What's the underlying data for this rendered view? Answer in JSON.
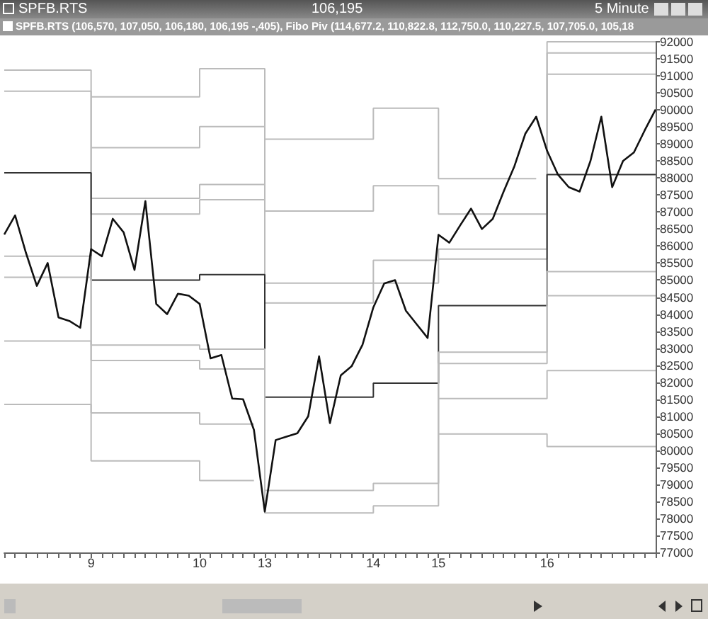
{
  "chart_data": {
    "type": "line",
    "title": "SPFB.RTS",
    "annotations": [
      "106,195",
      "5 Minute",
      "SPFB.RTS (106,570, 107,050, 106,180, 106,195 -,405), Fibo Piv (114,677.2, 110,822.8, 112,750.0, 110,227.5, 107,705.0, 105,18"
    ],
    "categories": [
      null,
      null,
      null,
      null,
      null,
      null,
      null,
      null,
      "9",
      null,
      null,
      null,
      null,
      null,
      null,
      null,
      null,
      null,
      "10",
      null,
      null,
      null,
      null,
      null,
      "13",
      null,
      null,
      null,
      null,
      null,
      null,
      null,
      null,
      null,
      "14",
      null,
      null,
      null,
      null,
      null,
      "15",
      null,
      null,
      null,
      null,
      null,
      null,
      null,
      null,
      null,
      "16",
      null,
      null,
      null,
      null,
      null,
      null,
      null,
      null,
      null,
      null
    ],
    "ylim": [
      77000,
      92000
    ],
    "yticks": [
      77000,
      77500,
      78000,
      78500,
      79000,
      79500,
      80000,
      80500,
      81000,
      81500,
      82000,
      82500,
      83000,
      83500,
      84000,
      84500,
      85000,
      85500,
      86000,
      86500,
      87000,
      87500,
      88000,
      88500,
      89000,
      89500,
      90000,
      90500,
      91000,
      91500,
      92000
    ],
    "grid": false,
    "marker": "none",
    "line_style": "solid",
    "series": [
      {
        "type": "step",
        "color": "#bbbbbb",
        "values": [
          null,
          null,
          null,
          null,
          null,
          null,
          null,
          null,
          90380,
          90380,
          90380,
          90380,
          90380,
          90380,
          90380,
          90380,
          90380,
          90380,
          91210,
          91210,
          91210,
          91210,
          91210,
          91210,
          89140,
          89140,
          89140,
          89140,
          89140,
          89140,
          89140,
          89140,
          89140,
          89140,
          90050,
          90050,
          90050,
          90050,
          90050,
          90050,
          87980,
          87980,
          87980,
          87980,
          87980,
          87980,
          87980,
          87980,
          87980,
          87980,
          null,
          null,
          null,
          null,
          null,
          null,
          null,
          null,
          null,
          null,
          null
        ]
      },
      {
        "type": "step",
        "color": "#bbbbbb",
        "values": [
          null,
          null,
          null,
          null,
          null,
          null,
          null,
          null,
          88890,
          88890,
          88890,
          88890,
          88890,
          88890,
          88890,
          88890,
          88890,
          88890,
          89510,
          89510,
          89510,
          89510,
          89510,
          89510,
          87030,
          87030,
          87030,
          87030,
          87030,
          87030,
          87030,
          87030,
          87030,
          87030,
          87770,
          87770,
          87770,
          87770,
          87770,
          87770,
          86940,
          86940,
          86940,
          86940,
          86940,
          86940,
          86940,
          86940,
          86940,
          86940,
          92000,
          92000,
          92000,
          92000,
          92000,
          92000,
          92000,
          92000,
          92000,
          92000,
          92000
        ]
      },
      {
        "type": "step",
        "color": "#bbbbbb",
        "values": [
          91170,
          91170,
          91170,
          91170,
          91170,
          91170,
          91170,
          91170,
          87400,
          87400,
          87400,
          87400,
          87400,
          87400,
          87400,
          87400,
          87400,
          87400,
          87810,
          87810,
          87810,
          87810,
          87810,
          87810,
          84910,
          84910,
          84910,
          84910,
          84910,
          84910,
          84910,
          84910,
          84910,
          84910,
          85580,
          85580,
          85580,
          85580,
          85580,
          85580,
          85910,
          85910,
          85910,
          85910,
          85910,
          85910,
          85910,
          85910,
          85910,
          85910,
          91670,
          91670,
          91670,
          91670,
          91670,
          91670,
          91670,
          91670,
          91670,
          91670,
          91670
        ]
      },
      {
        "type": "step",
        "color": "#bbbbbb",
        "values": [
          90550,
          90550,
          90550,
          90550,
          90550,
          90550,
          90550,
          90550,
          86940,
          86940,
          86940,
          86940,
          86940,
          86940,
          86940,
          86940,
          86940,
          86940,
          87360,
          87360,
          87360,
          87360,
          87360,
          87360,
          84330,
          84330,
          84330,
          84330,
          84330,
          84330,
          84330,
          84330,
          84330,
          84330,
          84910,
          84910,
          84910,
          84910,
          84910,
          84910,
          85620,
          85620,
          85620,
          85620,
          85620,
          85620,
          85620,
          85620,
          85620,
          85620,
          91050,
          91050,
          91050,
          91050,
          91050,
          91050,
          91050,
          91050,
          91050,
          91050,
          91050
        ]
      },
      {
        "type": "step",
        "color": "#333333",
        "values": [
          88150,
          88150,
          88150,
          88150,
          88150,
          88150,
          88150,
          88150,
          85000,
          85000,
          85000,
          85000,
          85000,
          85000,
          85000,
          85000,
          85000,
          85000,
          85160,
          85160,
          85160,
          85160,
          85160,
          85160,
          81560,
          81560,
          81560,
          81560,
          81560,
          81560,
          81560,
          81560,
          81560,
          81560,
          81970,
          81970,
          81970,
          81970,
          81970,
          81970,
          84250,
          84250,
          84250,
          84250,
          84250,
          84250,
          84250,
          84250,
          84250,
          84250,
          88100,
          88100,
          88100,
          88100,
          88100,
          88100,
          88100,
          88100,
          88100,
          88100,
          88100
        ]
      },
      {
        "type": "step",
        "color": "#bbbbbb",
        "values": [
          85700,
          85700,
          85700,
          85700,
          85700,
          85700,
          85700,
          85700,
          83090,
          83090,
          83090,
          83090,
          83090,
          83090,
          83090,
          83090,
          83090,
          83090,
          82970,
          82970,
          82970,
          82970,
          82970,
          82970,
          78820,
          78820,
          78820,
          78820,
          78820,
          78820,
          78820,
          78820,
          78820,
          78820,
          79030,
          79030,
          79030,
          79030,
          79030,
          79030,
          82880,
          82880,
          82880,
          82880,
          82880,
          82880,
          82880,
          82880,
          82880,
          82880,
          85250,
          85250,
          85250,
          85250,
          85250,
          85250,
          85250,
          85250,
          85250,
          85250,
          85250
        ]
      },
      {
        "type": "step",
        "color": "#bbbbbb",
        "values": [
          85080,
          85080,
          85080,
          85080,
          85080,
          85080,
          85080,
          85080,
          82640,
          82640,
          82640,
          82640,
          82640,
          82640,
          82640,
          82640,
          82640,
          82640,
          82390,
          82390,
          82390,
          82390,
          82390,
          82390,
          78160,
          78160,
          78160,
          78160,
          78160,
          78160,
          78160,
          78160,
          78160,
          78160,
          78370,
          78370,
          78370,
          78370,
          78370,
          78370,
          82550,
          82550,
          82550,
          82550,
          82550,
          82550,
          82550,
          82550,
          82550,
          82550,
          84540,
          84540,
          84540,
          84540,
          84540,
          84540,
          84540,
          84540,
          84540,
          84540,
          84540
        ]
      },
      {
        "type": "step",
        "color": "#bbbbbb",
        "values": [
          83210,
          83210,
          83210,
          83210,
          83210,
          83210,
          83210,
          83210,
          81100,
          81100,
          81100,
          81100,
          81100,
          81100,
          81100,
          81100,
          81100,
          81100,
          80770,
          80770,
          80770,
          80770,
          80770,
          80770,
          null,
          null,
          null,
          null,
          null,
          null,
          null,
          null,
          null,
          null,
          null,
          null,
          null,
          null,
          null,
          null,
          81520,
          81520,
          81520,
          81520,
          81520,
          81520,
          81520,
          81520,
          81520,
          81520,
          82340,
          82340,
          82340,
          82340,
          82340,
          82340,
          82340,
          82340,
          82340,
          82340,
          82340
        ]
      },
      {
        "type": "step",
        "color": "#bbbbbb",
        "values": [
          81350,
          81350,
          81350,
          81350,
          81350,
          81350,
          81350,
          81350,
          79690,
          79690,
          79690,
          79690,
          79690,
          79690,
          79690,
          79690,
          79690,
          79690,
          79110,
          79110,
          79110,
          79110,
          79110,
          79110,
          null,
          null,
          null,
          null,
          null,
          null,
          null,
          null,
          null,
          null,
          null,
          null,
          null,
          null,
          null,
          null,
          80480,
          80480,
          80480,
          80480,
          80480,
          80480,
          80480,
          80480,
          80480,
          80480,
          80110,
          80110,
          80110,
          80110,
          80110,
          80110,
          80110,
          80110,
          80110,
          80110,
          80110
        ]
      },
      {
        "color": "#111111",
        "values": [
          86340,
          86900,
          85800,
          84830,
          85500,
          83900,
          83800,
          83600,
          85910,
          85700,
          86800,
          86400,
          85300,
          87320,
          84300,
          84000,
          84600,
          84540,
          84300,
          82700,
          82800,
          81520,
          81500,
          80600,
          78200,
          80300,
          80400,
          80500,
          81000,
          82760,
          80800,
          82200,
          82470,
          83100,
          84200,
          84900,
          85000,
          84100,
          83700,
          83300,
          86330,
          86100,
          86610,
          87100,
          86500,
          86800,
          87600,
          88350,
          89300,
          89800,
          88800,
          88100,
          87730,
          87600,
          88500,
          89800,
          87730,
          88500,
          88750,
          89400,
          90010
        ]
      }
    ]
  }
}
